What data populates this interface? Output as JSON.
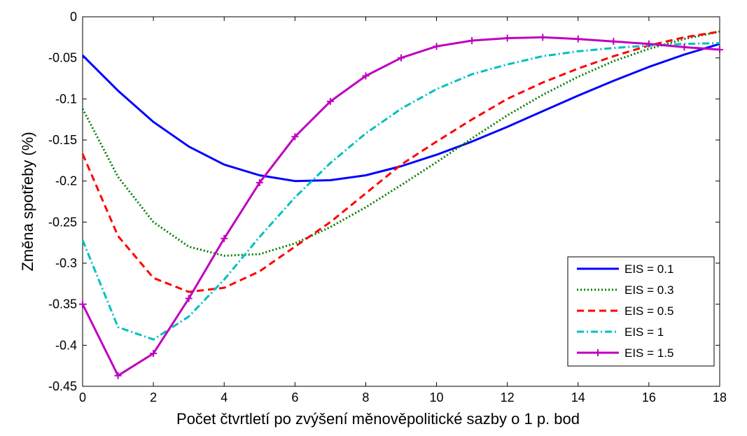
{
  "chart_data": {
    "type": "line",
    "xlabel": "Počet čtvrtletí po zvýšení měnověpolitické sazby o 1 p. bod",
    "ylabel": "Změna spotřeby (%)",
    "xlim": [
      0,
      18
    ],
    "ylim": [
      -0.45,
      0
    ],
    "xticks": [
      0,
      2,
      4,
      6,
      8,
      10,
      12,
      14,
      16,
      18
    ],
    "yticks": [
      0,
      -0.05,
      -0.1,
      -0.15,
      -0.2,
      -0.25,
      -0.3,
      -0.35,
      -0.4,
      -0.45
    ],
    "xtick_labels": [
      "0",
      "2",
      "4",
      "6",
      "8",
      "10",
      "12",
      "14",
      "16",
      "18"
    ],
    "ytick_labels": [
      "0",
      "-0.05",
      "-0.1",
      "-0.15",
      "-0.2",
      "-0.25",
      "-0.3",
      "-0.35",
      "-0.4",
      "-0.45"
    ],
    "grid": false,
    "legend_position": "bottom-right",
    "x": [
      0,
      1,
      2,
      3,
      4,
      5,
      6,
      7,
      8,
      9,
      10,
      11,
      12,
      13,
      14,
      15,
      16,
      17,
      18
    ],
    "series": [
      {
        "name": "EIS = 0.1",
        "color": "#0000ff",
        "style": "solid",
        "values": [
          -0.047,
          -0.09,
          -0.128,
          -0.158,
          -0.18,
          -0.193,
          -0.2,
          -0.199,
          -0.193,
          -0.182,
          -0.168,
          -0.152,
          -0.134,
          -0.115,
          -0.096,
          -0.078,
          -0.061,
          -0.046,
          -0.033
        ]
      },
      {
        "name": "EIS = 0.3",
        "color": "#007f00",
        "style": "dotted",
        "values": [
          -0.112,
          -0.195,
          -0.25,
          -0.28,
          -0.291,
          -0.289,
          -0.276,
          -0.256,
          -0.232,
          -0.205,
          -0.177,
          -0.148,
          -0.12,
          -0.095,
          -0.073,
          -0.054,
          -0.039,
          -0.027,
          -0.018
        ]
      },
      {
        "name": "EIS = 0.5",
        "color": "#ff0000",
        "style": "dashed",
        "values": [
          -0.167,
          -0.267,
          -0.318,
          -0.335,
          -0.33,
          -0.31,
          -0.28,
          -0.25,
          -0.215,
          -0.18,
          -0.152,
          -0.125,
          -0.1,
          -0.08,
          -0.063,
          -0.048,
          -0.035,
          -0.025,
          -0.018
        ]
      },
      {
        "name": "EIS = 1",
        "color": "#00bfbf",
        "style": "dashdot",
        "values": [
          -0.272,
          -0.378,
          -0.393,
          -0.365,
          -0.32,
          -0.268,
          -0.22,
          -0.178,
          -0.142,
          -0.112,
          -0.088,
          -0.07,
          -0.058,
          -0.048,
          -0.042,
          -0.038,
          -0.035,
          -0.033,
          -0.032
        ]
      },
      {
        "name": "EIS = 1.5",
        "color": "#bf00bf",
        "style": "solid-marker",
        "values": [
          -0.35,
          -0.437,
          -0.41,
          -0.343,
          -0.27,
          -0.202,
          -0.146,
          -0.103,
          -0.072,
          -0.05,
          -0.036,
          -0.029,
          -0.026,
          -0.025,
          -0.027,
          -0.03,
          -0.033,
          -0.037,
          -0.04
        ]
      }
    ]
  }
}
